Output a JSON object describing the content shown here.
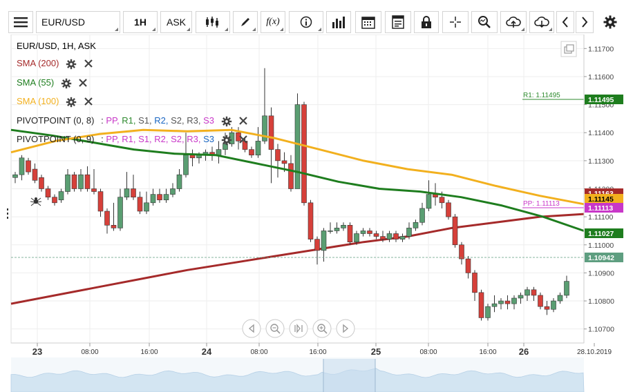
{
  "toolbar": {
    "symbol": "EUR/USD",
    "interval": "1H",
    "price_type": "ASK",
    "icons": [
      "menu-icon",
      "candlestick-type-icon",
      "draw-icon",
      "function-icon",
      "info-icon",
      "bar-chart-icon",
      "calendar-icon",
      "table-icon",
      "lock-icon",
      "crosshair-icon",
      "zoom-search-icon",
      "upload-cloud-icon",
      "download-cloud-icon",
      "arrow-left-icon",
      "arrow-right-icon",
      "settings-icon"
    ]
  },
  "legend": {
    "title": "EUR/USD, 1H, ASK",
    "sma200": "SMA (200)",
    "sma55": "SMA (55)",
    "sma100": "SMA (100)",
    "pivot1": "PIVOTPOINT (0, 8)",
    "pivot2": "PIVOTPOINT (0, 9)",
    "pivot_sep": ":",
    "pivot_items": [
      "PP,",
      "R1,",
      "S1,",
      "R2,",
      "S2,",
      "R3,",
      "S3"
    ],
    "colors": {
      "sma200": "#a52a2a",
      "sma55": "#1e7d1e",
      "sma100": "#f2b01e",
      "pp": "#c837c8",
      "r1": "#2d8a2d",
      "s1": "#555555",
      "r2": "#1a66c2",
      "s2": "#555555",
      "r3": "#555555",
      "s3": "#c837c8"
    }
  },
  "price_axis": {
    "ticks": [
      "1.11700",
      "1.11600",
      "1.11500",
      "1.11400",
      "1.11300",
      "1.11200",
      "1.11100",
      "1.11000",
      "1.10900",
      "1.10800",
      "1.10700"
    ],
    "labels": [
      {
        "text": "1.11495",
        "bg": "#1e7d1e",
        "fg": "#ffffff"
      },
      {
        "text": "1.11163",
        "bg": "#a52a2a",
        "fg": "#ffffff"
      },
      {
        "text": "1.11145",
        "bg": "#f2b01e",
        "fg": "#000000"
      },
      {
        "text": "1.11113",
        "bg": "#c837c8",
        "fg": "#ffffff"
      },
      {
        "text": "1.11027",
        "bg": "#1e7d1e",
        "fg": "#ffffff"
      },
      {
        "text": "1.10942",
        "bg": "#5e9e80",
        "fg": "#ffffff"
      }
    ],
    "line_labels": [
      "R1: 1.11495",
      "PP: 1.11113"
    ]
  },
  "time_axis": {
    "labels": [
      {
        "text": "23",
        "major": true
      },
      {
        "text": "08:00",
        "major": false
      },
      {
        "text": "16:00",
        "major": false
      },
      {
        "text": "24",
        "major": true
      },
      {
        "text": "08:00",
        "major": false
      },
      {
        "text": "16:00",
        "major": false
      },
      {
        "text": "25",
        "major": true
      },
      {
        "text": "08:00",
        "major": false
      },
      {
        "text": "16:00",
        "major": false
      },
      {
        "text": "26",
        "major": true
      },
      {
        "text": "28.10.2019",
        "major": false
      }
    ]
  },
  "nav_controls": [
    "arrow-left-icon",
    "zoom-out-icon",
    "reset-icon",
    "zoom-in-icon",
    "arrow-right-icon"
  ],
  "chart_data": {
    "type": "candlestick",
    "symbol": "EUR/USD",
    "interval": "1H",
    "ylim": [
      1.1065,
      1.1175
    ],
    "x_start": "2019-10-22 23:00",
    "up_color": "#5a9e72",
    "down_color": "#d6403a",
    "candles": [
      [
        1.1124,
        1.1125,
        1.1122,
        1.1126
      ],
      [
        1.1125,
        1.1131,
        1.1123,
        1.1132
      ],
      [
        1.113,
        1.1126,
        1.1125,
        1.1131
      ],
      [
        1.1127,
        1.1123,
        1.1122,
        1.1129
      ],
      [
        1.1124,
        1.112,
        1.1119,
        1.1125
      ],
      [
        1.112,
        1.1117,
        1.1116,
        1.1121
      ],
      [
        1.1117,
        1.1115,
        1.1114,
        1.1118
      ],
      [
        1.1116,
        1.1119,
        1.1115,
        1.112
      ],
      [
        1.1119,
        1.1125,
        1.1118,
        1.1127
      ],
      [
        1.1125,
        1.112,
        1.1119,
        1.1126
      ],
      [
        1.112,
        1.1125,
        1.1119,
        1.1127
      ],
      [
        1.1125,
        1.112,
        1.1119,
        1.1128
      ],
      [
        1.112,
        1.1119,
        1.1118,
        1.1127
      ],
      [
        1.1119,
        1.1112,
        1.111,
        1.112
      ],
      [
        1.1112,
        1.1107,
        1.1104,
        1.1113
      ],
      [
        1.1107,
        1.1106,
        1.1105,
        1.1115
      ],
      [
        1.1106,
        1.1117,
        1.1105,
        1.112
      ],
      [
        1.1117,
        1.112,
        1.1116,
        1.1126
      ],
      [
        1.112,
        1.1117,
        1.1116,
        1.1125
      ],
      [
        1.1117,
        1.1112,
        1.1111,
        1.1119
      ],
      [
        1.1112,
        1.1115,
        1.1111,
        1.1119
      ],
      [
        1.1115,
        1.1118,
        1.1114,
        1.112
      ],
      [
        1.1118,
        1.1116,
        1.1115,
        1.112
      ],
      [
        1.1116,
        1.1118,
        1.1115,
        1.112
      ],
      [
        1.1118,
        1.112,
        1.1117,
        1.1122
      ],
      [
        1.112,
        1.1125,
        1.1119,
        1.1127
      ],
      [
        1.1125,
        1.1132,
        1.1124,
        1.114
      ],
      [
        1.1132,
        1.1131,
        1.1128,
        1.1134
      ],
      [
        1.1131,
        1.1132,
        1.1129,
        1.1133
      ],
      [
        1.1132,
        1.1133,
        1.113,
        1.1134
      ],
      [
        1.1133,
        1.1132,
        1.113,
        1.1135
      ],
      [
        1.1132,
        1.1134,
        1.1129,
        1.1137
      ],
      [
        1.1134,
        1.1136,
        1.1132,
        1.114
      ],
      [
        1.1136,
        1.114,
        1.1135,
        1.1142
      ],
      [
        1.114,
        1.1137,
        1.1134,
        1.1142
      ],
      [
        1.1137,
        1.1134,
        1.1133,
        1.1138
      ],
      [
        1.1134,
        1.1132,
        1.1131,
        1.1135
      ],
      [
        1.1132,
        1.1137,
        1.1131,
        1.1142
      ],
      [
        1.1137,
        1.1146,
        1.1136,
        1.1163
      ],
      [
        1.1146,
        1.1134,
        1.1122,
        1.1149
      ],
      [
        1.1134,
        1.113,
        1.1124,
        1.1136
      ],
      [
        1.113,
        1.1129,
        1.1126,
        1.1133
      ],
      [
        1.1129,
        1.112,
        1.1119,
        1.1132
      ],
      [
        1.112,
        1.115,
        1.112,
        1.1154
      ],
      [
        1.115,
        1.1115,
        1.1114,
        1.1151
      ],
      [
        1.1115,
        1.1102,
        1.1101,
        1.1116
      ],
      [
        1.1102,
        1.1098,
        1.1093,
        1.1103
      ],
      [
        1.1098,
        1.1105,
        1.1094,
        1.1106
      ],
      [
        1.1105,
        1.1105,
        1.1104,
        1.1108
      ],
      [
        1.1105,
        1.1106,
        1.1104,
        1.1108
      ],
      [
        1.1106,
        1.1107,
        1.1105,
        1.1108
      ],
      [
        1.1107,
        1.1101,
        1.11,
        1.1108
      ],
      [
        1.1101,
        1.1104,
        1.11,
        1.1105
      ],
      [
        1.1104,
        1.1105,
        1.1103,
        1.1106
      ],
      [
        1.1105,
        1.1104,
        1.1103,
        1.1106
      ],
      [
        1.1104,
        1.1103,
        1.1102,
        1.1105
      ],
      [
        1.1103,
        1.1102,
        1.1101,
        1.1105
      ],
      [
        1.1102,
        1.1104,
        1.1101,
        1.1105
      ],
      [
        1.1104,
        1.1102,
        1.1101,
        1.1105
      ],
      [
        1.1102,
        1.1103,
        1.1101,
        1.1104
      ],
      [
        1.1103,
        1.1106,
        1.1102,
        1.1108
      ],
      [
        1.1106,
        1.1108,
        1.1105,
        1.1109
      ],
      [
        1.1108,
        1.1113,
        1.1107,
        1.1115
      ],
      [
        1.1113,
        1.1118,
        1.1112,
        1.1123
      ],
      [
        1.1118,
        1.1117,
        1.1114,
        1.1122
      ],
      [
        1.1117,
        1.1115,
        1.1113,
        1.1119
      ],
      [
        1.1115,
        1.111,
        1.1109,
        1.1116
      ],
      [
        1.111,
        1.11,
        1.1099,
        1.1111
      ],
      [
        1.11,
        1.1095,
        1.1093,
        1.1101
      ],
      [
        1.1095,
        1.109,
        1.1088,
        1.1096
      ],
      [
        1.109,
        1.1083,
        1.108,
        1.1091
      ],
      [
        1.1083,
        1.1074,
        1.1073,
        1.1084
      ],
      [
        1.1074,
        1.1078,
        1.1073,
        1.1079
      ],
      [
        1.1078,
        1.1079,
        1.1076,
        1.1082
      ],
      [
        1.1079,
        1.108,
        1.1077,
        1.1081
      ],
      [
        1.108,
        1.1079,
        1.1077,
        1.1082
      ],
      [
        1.1079,
        1.1081,
        1.1077,
        1.1082
      ],
      [
        1.1081,
        1.1082,
        1.1079,
        1.1083
      ],
      [
        1.1082,
        1.1084,
        1.108,
        1.1085
      ],
      [
        1.1084,
        1.1082,
        1.108,
        1.1085
      ],
      [
        1.1082,
        1.1078,
        1.1077,
        1.1083
      ],
      [
        1.1078,
        1.1077,
        1.1075,
        1.108
      ],
      [
        1.1077,
        1.108,
        1.1076,
        1.1081
      ],
      [
        1.108,
        1.1082,
        1.1079,
        1.1083
      ],
      [
        1.1082,
        1.1087,
        1.1081,
        1.1089
      ]
    ],
    "sma200": [
      1.1079,
      1.1082,
      1.1085,
      1.1088,
      1.1091,
      1.10935,
      1.1096,
      1.10985,
      1.1101,
      1.1103,
      1.1106,
      1.1108,
      1.111,
      1.1111
    ],
    "sma55": [
      1.1141,
      1.1139,
      1.11365,
      1.1134,
      1.11325,
      1.1132,
      1.1129,
      1.1126,
      1.11225,
      1.112,
      1.1119,
      1.1117,
      1.1114,
      1.111,
      1.1105
    ],
    "sma100": [
      1.1133,
      1.1137,
      1.11395,
      1.1141,
      1.11405,
      1.1141,
      1.1138,
      1.1134,
      1.113,
      1.1127,
      1.1125,
      1.1121,
      1.11175,
      1.11145
    ]
  }
}
